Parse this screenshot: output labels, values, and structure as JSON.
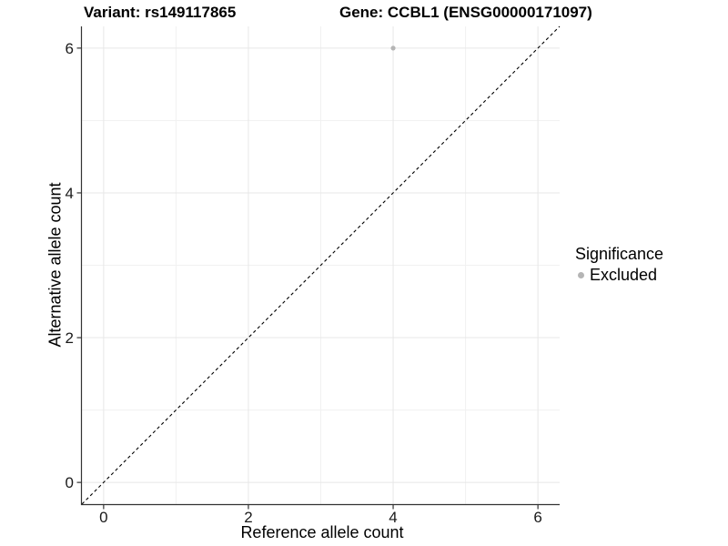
{
  "chart_data": {
    "type": "scatter",
    "titles": {
      "left": "Variant: rs149117865",
      "right": "Gene: CCBL1 (ENSG00000171097)"
    },
    "xlabel": "Reference allele count",
    "ylabel": "Alternative allele count",
    "xlim": [
      -0.3,
      6.3
    ],
    "ylim": [
      -0.3,
      6.3
    ],
    "xticks": [
      0,
      2,
      4,
      6
    ],
    "yticks": [
      0,
      2,
      4,
      6
    ],
    "xtick_labels": [
      "0",
      "2",
      "4",
      "6"
    ],
    "ytick_labels": [
      "0",
      "2",
      "4",
      "6"
    ],
    "minor_grid_x": [
      1,
      3,
      5
    ],
    "minor_grid_y": [
      1,
      3,
      5
    ],
    "grid": true,
    "legend_position": "right",
    "identity_line": {
      "type": "dashed",
      "from": [
        -0.3,
        -0.3
      ],
      "to": [
        6.3,
        6.3
      ],
      "color": "#000000"
    },
    "series": [
      {
        "name": "Excluded",
        "color": "#b5b5b5",
        "points": [
          {
            "x": 4,
            "y": 6
          }
        ]
      }
    ],
    "legend": {
      "title": "Significance",
      "entries": [
        {
          "label": "Excluded",
          "color": "#b5b5b5"
        }
      ]
    },
    "colors": {
      "grid_major": "#e7e7e7",
      "grid_minor": "#f1f1f1",
      "axis_line": "#333333",
      "tick_text": "#1a1a1a",
      "background": "#ffffff"
    }
  }
}
